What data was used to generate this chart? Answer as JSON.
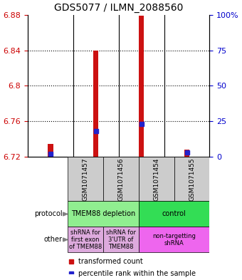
{
  "title": "GDS5077 / ILMN_2088560",
  "samples": [
    "GSM1071457",
    "GSM1071456",
    "GSM1071454",
    "GSM1071455"
  ],
  "y_min": 6.72,
  "y_max": 6.88,
  "y_ticks_left": [
    6.72,
    6.76,
    6.8,
    6.84,
    6.88
  ],
  "y_ticks_right": [
    0,
    25,
    50,
    75,
    100
  ],
  "red_values": [
    6.735,
    6.84,
    6.879,
    6.728
  ],
  "blue_percentiles": [
    2,
    18,
    23,
    3
  ],
  "bar_color": "#CC1111",
  "blue_color": "#2222CC",
  "label_color_left": "#CC0000",
  "label_color_right": "#0000CC",
  "protocol_groups": [
    {
      "label": "TMEM88 depletion",
      "start": 0,
      "end": 2,
      "color": "#90EE90"
    },
    {
      "label": "control",
      "start": 2,
      "end": 4,
      "color": "#33DD55"
    }
  ],
  "other_groups": [
    {
      "label": "shRNA for\nfirst exon\nof TMEM88",
      "start": 0,
      "end": 1,
      "color": "#DDAADD"
    },
    {
      "label": "shRNA for\n3'UTR of\nTMEM88",
      "start": 1,
      "end": 2,
      "color": "#DDAADD"
    },
    {
      "label": "non-targetting\nshRNA",
      "start": 2,
      "end": 4,
      "color": "#EE66EE"
    }
  ]
}
